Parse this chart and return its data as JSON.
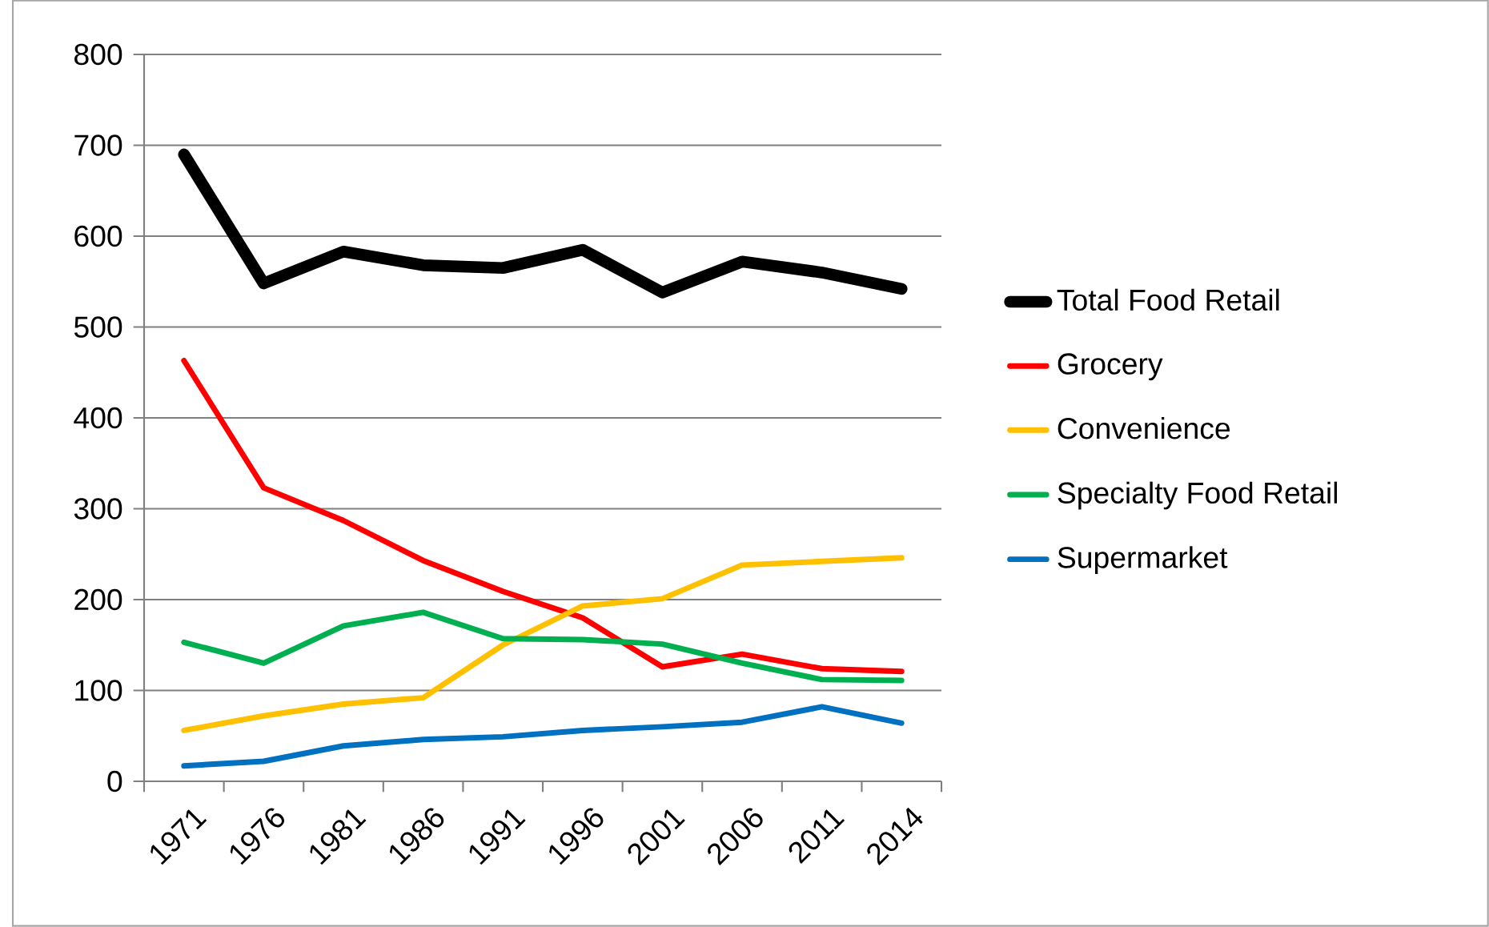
{
  "chart_data": {
    "type": "line",
    "categories": [
      "1971",
      "1976",
      "1981",
      "1986",
      "1991",
      "1996",
      "2001",
      "2006",
      "2011",
      "2014"
    ],
    "series": [
      {
        "name": "Total Food Retail",
        "color": "#000000",
        "values": [
          690,
          548,
          583,
          568,
          565,
          585,
          538,
          572,
          560,
          542
        ]
      },
      {
        "name": "Grocery",
        "color": "#ff0000",
        "values": [
          463,
          323,
          287,
          243,
          209,
          180,
          126,
          140,
          124,
          121
        ]
      },
      {
        "name": "Convenience",
        "color": "#ffc000",
        "values": [
          56,
          72,
          85,
          92,
          150,
          193,
          201,
          238,
          242,
          246
        ]
      },
      {
        "name": "Specialty Food Retail",
        "color": "#00b050",
        "values": [
          153,
          130,
          171,
          186,
          157,
          156,
          151,
          130,
          112,
          111
        ]
      },
      {
        "name": "Supermarket",
        "color": "#0070c0",
        "values": [
          17,
          22,
          39,
          46,
          49,
          56,
          60,
          65,
          82,
          64
        ]
      }
    ],
    "ylim": [
      0,
      800
    ],
    "yticks": [
      0,
      100,
      200,
      300,
      400,
      500,
      600,
      700,
      800
    ],
    "grid": "y",
    "legend": "right",
    "marker": "none",
    "line_style": "solid"
  }
}
